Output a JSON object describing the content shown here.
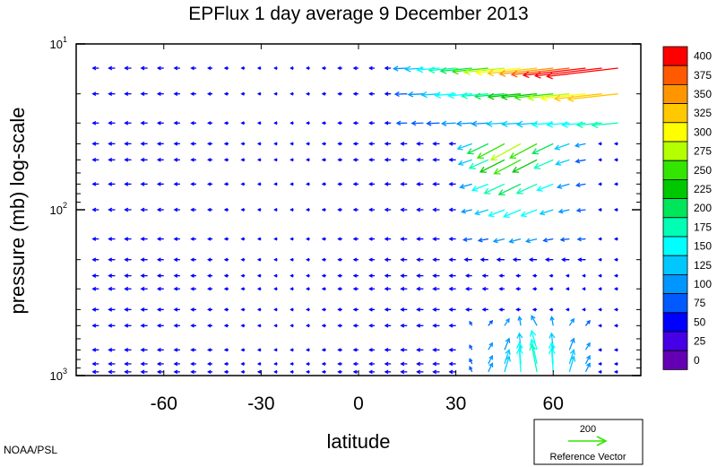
{
  "chart_data": {
    "type": "vector",
    "title": "EPFlux  1 day average  9 December 2013",
    "xlabel": "latitude",
    "ylabel": "pressure (mb)  log-scale",
    "x_ticks": [
      {
        "value": -60,
        "label": "-60"
      },
      {
        "value": -30,
        "label": "-30"
      },
      {
        "value": 0,
        "label": "0"
      },
      {
        "value": 30,
        "label": "30"
      },
      {
        "value": 60,
        "label": "60"
      }
    ],
    "y_ticks": [
      {
        "value": 10,
        "base": "10",
        "exp": "1"
      },
      {
        "value": 100,
        "base": "10",
        "exp": "2"
      },
      {
        "value": 1000,
        "base": "10",
        "exp": "3"
      }
    ],
    "xlim": [
      -87,
      87
    ],
    "ylim": [
      1000,
      10
    ],
    "y_scale": "log",
    "colorbar": {
      "levels": [
        "400",
        "375",
        "350",
        "325",
        "300",
        "275",
        "250",
        "225",
        "200",
        "175",
        "150",
        "125",
        "100",
        "75",
        "50",
        "25",
        "0"
      ],
      "colors": [
        "#ff0000",
        "#ff5a00",
        "#ff9600",
        "#ffc800",
        "#ffff00",
        "#b4ff00",
        "#32e600",
        "#00c800",
        "#00e65a",
        "#00ffb4",
        "#00ffff",
        "#00c8ff",
        "#0096ff",
        "#005aff",
        "#0000ff",
        "#4600e6",
        "#6400b4"
      ]
    },
    "reference": {
      "magnitude": "200",
      "label": "Reference Vector",
      "color": "#32e600"
    },
    "vectors": {
      "lat": [
        -80,
        -75,
        -70,
        -65,
        -60,
        -55,
        -50,
        -45,
        -40,
        -35,
        -30,
        -25,
        -20,
        -15,
        -10,
        -5,
        0,
        5,
        10,
        15,
        20,
        25,
        30,
        35,
        40,
        45,
        50,
        55,
        60,
        65,
        70,
        75,
        80
      ],
      "pressure": [
        14,
        20,
        30,
        40,
        50,
        70,
        100,
        150,
        200,
        250,
        300,
        400,
        500,
        700,
        850,
        950
      ],
      "description": "EP flux vectors (u,v in data units of latitude / log10-pressure decades per magnitude) sampled on lat x pressure grid; strong westward-poleward flux in the NH upper levels, upward flux over 40-65N lower levels",
      "field": "generated"
    }
  },
  "credit": "NOAA/PSL"
}
